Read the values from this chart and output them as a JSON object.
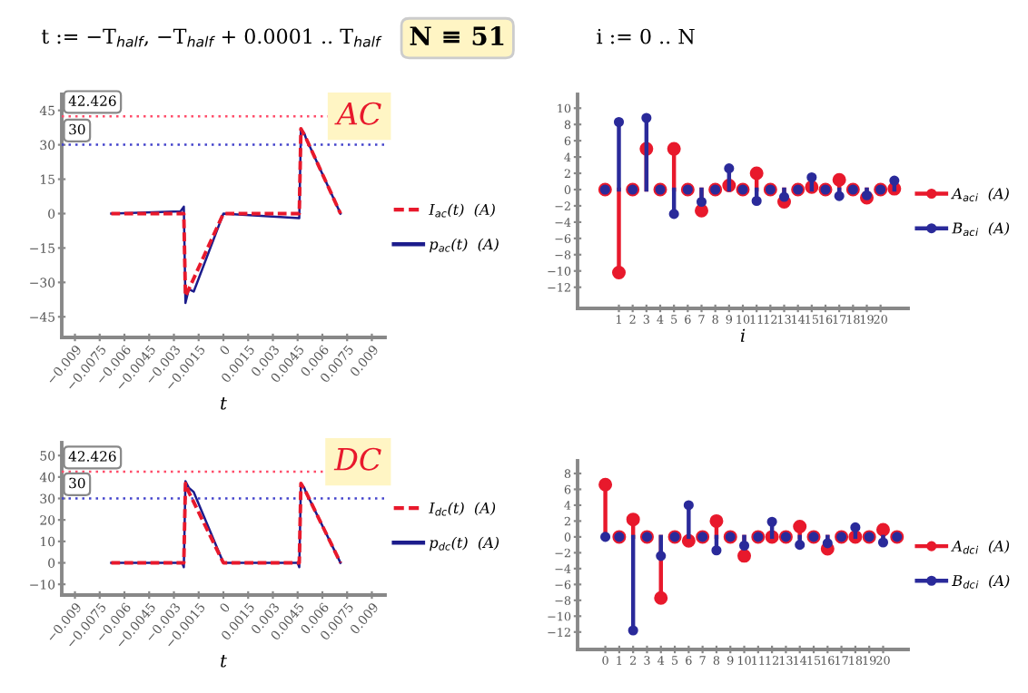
{
  "chart_data": [
    {
      "type": "line",
      "title": "AC",
      "xlabel": "t",
      "annotations": [
        "t := −T$_{half}$, −T$_{half}$ + 0.0001 .. T$_{half}$",
        "N ≡ 51",
        "i := 0 .. N"
      ],
      "xlim": [
        -0.0098,
        0.0098
      ],
      "ylim": [
        -54,
        52
      ],
      "xticks": [
        -0.009,
        -0.0075,
        -0.006,
        -0.0045,
        -0.003,
        -0.0015,
        0,
        0.0015,
        0.003,
        0.0045,
        0.006,
        0.0075,
        0.009
      ],
      "yticks": [
        -45,
        -30,
        -15,
        0,
        15,
        30,
        45
      ],
      "ref_lines": [
        {
          "axis": "y",
          "value": 42.426,
          "label": "42.426",
          "color": "#ff4d6a",
          "line_style": "dotted"
        },
        {
          "axis": "y",
          "value": 30,
          "label": "30",
          "color": "#4444cc",
          "line_style": "dotted"
        }
      ],
      "legend": "right",
      "grid": false,
      "series": [
        {
          "name": "I$_{ac}$(t)  (A)",
          "color": "#e8192c",
          "line_style": "dashed",
          "x": [
            -0.0068,
            -0.0024,
            -0.0023,
            -0.0021,
            0,
            0.0046,
            0.0047,
            0.005,
            0.0071
          ],
          "values": [
            0,
            0,
            -36,
            -33,
            0,
            0,
            37,
            33,
            0
          ]
        },
        {
          "name": "p$_{ac}$(t)  (A)",
          "color": "#1c1c8c",
          "line_style": "solid",
          "x": [
            -0.0068,
            -0.0026,
            -0.0024,
            -0.0023,
            -0.0021,
            -0.0018,
            0,
            0.0046,
            0.0047,
            0.0049,
            0.005,
            0.0071
          ],
          "values": [
            0,
            1,
            3,
            -39,
            -33,
            -34,
            0,
            -2,
            37,
            35,
            33,
            0
          ]
        }
      ]
    },
    {
      "type": "lollipop",
      "xlabel": "i",
      "marker": "circle",
      "xlim": [
        -2,
        22
      ],
      "ylim": [
        -14.6,
        11.7
      ],
      "xticks": [
        1,
        2,
        3,
        4,
        5,
        6,
        7,
        8,
        9,
        10,
        11,
        12,
        13,
        14,
        15,
        16,
        17,
        18,
        19,
        20
      ],
      "yticks": [
        -12,
        -10,
        -8,
        -6,
        -4,
        -2,
        0,
        2,
        4,
        6,
        8,
        10
      ],
      "legend": "right",
      "grid": false,
      "series": [
        {
          "name": "A$_{ac}$$_{i}$  (A)",
          "color": "#e8192c",
          "x": [
            0,
            1,
            2,
            3,
            4,
            5,
            6,
            7,
            8,
            9,
            10,
            11,
            12,
            13,
            14,
            15,
            16,
            17,
            18,
            19,
            20,
            21
          ],
          "values": [
            0,
            -10.2,
            0,
            5,
            0,
            5,
            0,
            -2.6,
            0,
            0.5,
            0,
            2,
            0,
            -1.5,
            0,
            0.3,
            0,
            1.2,
            0,
            -1,
            0,
            0.1
          ]
        },
        {
          "name": "B$_{ac}$$_{i}$  (A)",
          "color": "#2a2a9a",
          "x": [
            0,
            1,
            2,
            3,
            4,
            5,
            6,
            7,
            8,
            9,
            10,
            11,
            12,
            13,
            14,
            15,
            16,
            17,
            18,
            19,
            20,
            21
          ],
          "values": [
            0,
            8.3,
            0,
            8.8,
            0,
            -3,
            0,
            -1.5,
            0,
            2.6,
            0,
            -1.4,
            0,
            -0.9,
            0,
            1.5,
            0,
            -0.8,
            0,
            -0.7,
            0,
            1.1
          ]
        }
      ]
    },
    {
      "type": "line",
      "title": "DC",
      "xlabel": "t",
      "xlim": [
        -0.0098,
        0.0098
      ],
      "ylim": [
        -15,
        56
      ],
      "xticks": [
        -0.009,
        -0.0075,
        -0.006,
        -0.0045,
        -0.003,
        -0.0015,
        0,
        0.0015,
        0.003,
        0.0045,
        0.006,
        0.0075,
        0.009
      ],
      "yticks": [
        -10,
        0,
        10,
        20,
        30,
        40,
        50
      ],
      "ref_lines": [
        {
          "axis": "y",
          "value": 42.426,
          "label": "42.426",
          "color": "#ff4d6a",
          "line_style": "dotted"
        },
        {
          "axis": "y",
          "value": 30,
          "label": "30",
          "color": "#4444cc",
          "line_style": "dotted"
        }
      ],
      "legend": "right",
      "grid": false,
      "series": [
        {
          "name": "I$_{dc}$(t)  (A)",
          "color": "#e8192c",
          "line_style": "dashed",
          "x": [
            -0.0068,
            -0.0024,
            -0.0023,
            -0.0021,
            0,
            0.0046,
            0.0047,
            0.005,
            0.0071
          ],
          "values": [
            0,
            0,
            37,
            33,
            0,
            0,
            37,
            33,
            0
          ]
        },
        {
          "name": "p$_{dc}$(t)  (A)",
          "color": "#1c1c8c",
          "line_style": "solid",
          "x": [
            -0.0068,
            -0.0025,
            -0.0024,
            -0.0023,
            -0.0021,
            -0.0018,
            0,
            0.0045,
            0.0046,
            0.0047,
            0.0049,
            0.005,
            0.0071
          ],
          "values": [
            0,
            0,
            -2,
            38,
            35,
            33,
            0,
            0,
            -2,
            37,
            35,
            33,
            0
          ]
        }
      ]
    },
    {
      "type": "lollipop",
      "marker": "circle",
      "xlim": [
        -2,
        21.8
      ],
      "ylim": [
        -14.2,
        9.6
      ],
      "xticks": [
        0,
        1,
        2,
        3,
        4,
        5,
        6,
        7,
        8,
        9,
        10,
        11,
        12,
        13,
        14,
        15,
        16,
        17,
        18,
        19,
        20
      ],
      "yticks": [
        -12,
        -10,
        -8,
        -6,
        -4,
        -2,
        0,
        2,
        4,
        6,
        8
      ],
      "legend": "right",
      "grid": false,
      "series": [
        {
          "name": "A$_{dc}$$_{i}$  (A)",
          "color": "#e8192c",
          "x": [
            0,
            1,
            2,
            3,
            4,
            5,
            6,
            7,
            8,
            9,
            10,
            11,
            12,
            13,
            14,
            15,
            16,
            17,
            18,
            19,
            20,
            21
          ],
          "values": [
            6.6,
            0,
            2.2,
            0,
            -7.7,
            0,
            -0.5,
            0,
            2,
            0,
            -2.4,
            0,
            0,
            0,
            1.3,
            0,
            -1.5,
            0,
            0,
            0,
            0.9,
            0
          ]
        },
        {
          "name": "B$_{dc}$$_{i}$  (A)",
          "color": "#2a2a9a",
          "x": [
            0,
            1,
            2,
            3,
            4,
            5,
            6,
            7,
            8,
            9,
            10,
            11,
            12,
            13,
            14,
            15,
            16,
            17,
            18,
            19,
            20,
            21
          ],
          "values": [
            0,
            0,
            -11.8,
            0,
            -2.4,
            0,
            4,
            0,
            -1.7,
            0,
            -1.1,
            0,
            1.9,
            0,
            -1,
            0,
            -0.8,
            0,
            1.2,
            0,
            -0.7,
            0
          ]
        }
      ]
    }
  ]
}
